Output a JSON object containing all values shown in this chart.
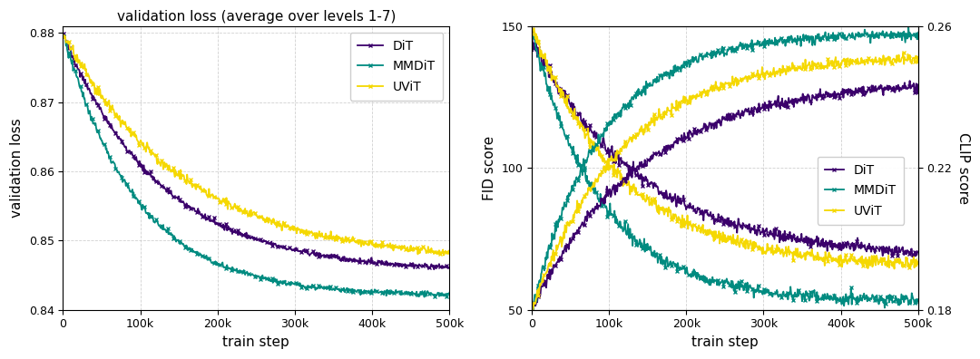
{
  "title_left": "validation loss (average over levels 1-7)",
  "xlabel": "train step",
  "ylabel_left": "validation loss",
  "ylabel_right_fid": "FID score",
  "ylabel_right_clip": "CLIP score",
  "colors": {
    "DiT": "#3b006b",
    "MMDiT": "#008b80",
    "UViT": "#f5d800"
  },
  "ylim_left": [
    0.84,
    0.881
  ],
  "ylim_fid": [
    50,
    150
  ],
  "ylim_clip": [
    0.18,
    0.26
  ],
  "xticks": [
    0,
    100000,
    200000,
    300000,
    400000,
    500000
  ],
  "xtick_labels": [
    "0",
    "100k",
    "200k",
    "300k",
    "400k",
    "500k"
  ],
  "yticks_left": [
    0.84,
    0.85,
    0.86,
    0.87,
    0.88
  ],
  "ytick_labels_left": [
    "0.84",
    "0.85",
    "0.86",
    "0.87",
    "0.88"
  ],
  "yticks_fid": [
    50,
    100,
    150
  ],
  "ytick_labels_fid": [
    "50",
    "100",
    "150"
  ],
  "yticks_clip": [
    0.18,
    0.22,
    0.26
  ],
  "ytick_labels_clip": [
    "0.18",
    "0.22",
    "0.26"
  ],
  "figsize": [
    10.8,
    3.96
  ],
  "dpi": 100,
  "background_color": "#ffffff",
  "grid_color": "#cccccc",
  "marker": "x",
  "markersize": 3,
  "linewidth": 1.3
}
